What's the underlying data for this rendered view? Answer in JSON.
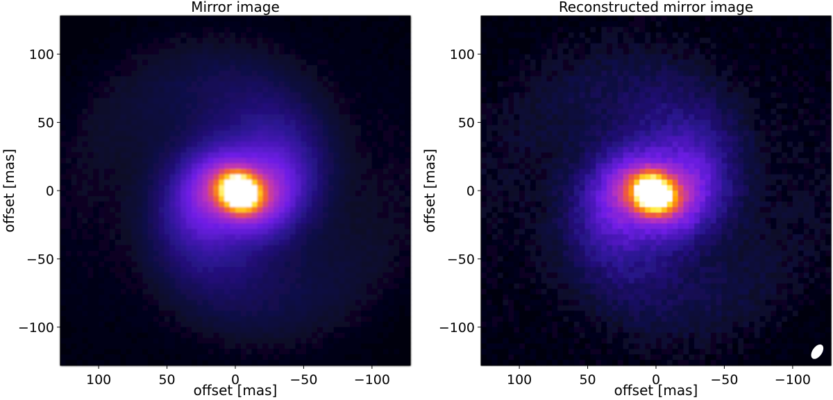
{
  "chart_data": [
    {
      "type": "heatmap",
      "title": "Mirror image",
      "xlabel": "offset [mas]",
      "ylabel": "offset [mas]",
      "xlim": [
        128,
        -128
      ],
      "ylim": [
        -128,
        128
      ],
      "xticks": [
        100,
        50,
        0,
        -50,
        -100
      ],
      "yticks": [
        100,
        50,
        0,
        -50,
        -100
      ],
      "colormap": "gnuplot2",
      "peak_offset": [
        -3,
        -1
      ],
      "beam": null,
      "grid": false
    },
    {
      "type": "heatmap",
      "title": "Reconstructed mirror image",
      "xlabel": "offset [mas]",
      "ylabel": "offset [mas]",
      "xlim": [
        128,
        -128
      ],
      "ylim": [
        -128,
        128
      ],
      "xticks": [
        100,
        50,
        0,
        -50,
        -100
      ],
      "yticks": [
        100,
        50,
        0,
        -50,
        -100
      ],
      "colormap": "gnuplot2",
      "peak_offset": [
        2,
        -2
      ],
      "beam": {
        "center": [
          -118,
          -118
        ],
        "major": 12,
        "minor": 7,
        "angle_deg": 55
      },
      "grid": false
    }
  ]
}
